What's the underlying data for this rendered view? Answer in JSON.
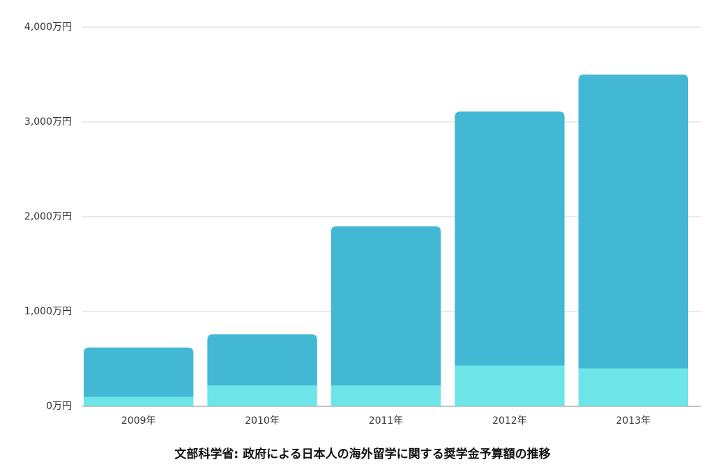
{
  "chart_data": {
    "type": "stacked_bar",
    "title": "文部科学省: 政府による日本人の海外留学に関する奨学金予算額の推移",
    "categories": [
      "2009年",
      "2010年",
      "2011年",
      "2012年",
      "2013年"
    ],
    "series": [
      {
        "color": "#6ce4e8",
        "values": [
          100,
          220,
          220,
          430,
          400
        ]
      },
      {
        "color": "#42b8d5",
        "values": [
          520,
          540,
          1680,
          2680,
          3100
        ]
      }
    ],
    "ylim": [
      0,
      4000
    ],
    "yticks": [
      {
        "value": 0,
        "label": "0万円"
      },
      {
        "value": 1000,
        "label": "1,000万円"
      },
      {
        "value": 2000,
        "label": "2,000万円"
      },
      {
        "value": 3000,
        "label": "3,000万円"
      },
      {
        "value": 4000,
        "label": "4,000万円"
      }
    ],
    "grid": true
  }
}
